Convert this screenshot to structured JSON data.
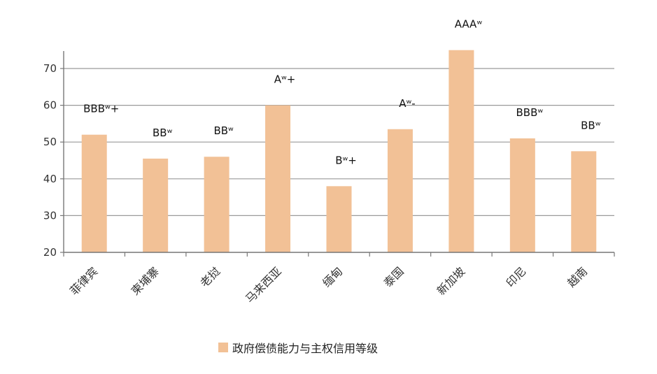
{
  "chart_data": {
    "type": "bar",
    "categories": [
      "菲律宾",
      "柬埔寨",
      "老挝",
      "马来西亚",
      "缅甸",
      "泰国",
      "新加坡",
      "印尼",
      "越南"
    ],
    "series": [
      {
        "name": "政府偿债能力与主权信用等级",
        "values": [
          52,
          45.5,
          46,
          60,
          38,
          53.5,
          75,
          51,
          47.5
        ],
        "ratings": [
          "BBBʷ+",
          "BBʷ",
          "BBʷ",
          "Aʷ+",
          "Bʷ+",
          "Aʷ-",
          "AAAʷ",
          "BBBʷ",
          "BBʷ"
        ],
        "color": "#F2C196"
      }
    ],
    "yticks": [
      20,
      30,
      40,
      50,
      60,
      70
    ],
    "ylim": [
      20,
      75
    ],
    "grid": true,
    "legend": "bottom",
    "title": "",
    "xlabel": "",
    "ylabel": ""
  }
}
